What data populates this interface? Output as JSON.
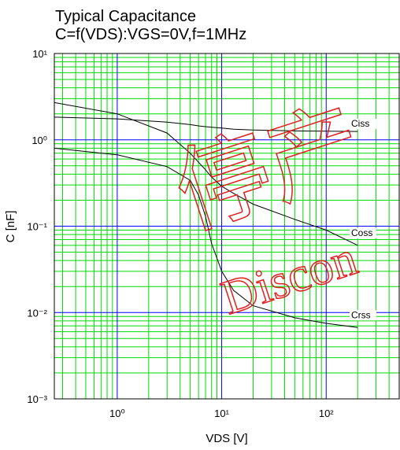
{
  "chart_data": {
    "type": "line",
    "title": [
      "Typical Capacitance",
      "C=f(VDS):VGS=0V,f=1MHz"
    ],
    "xlabel": "VDS [V]",
    "ylabel": "C [nF]",
    "xscale": "log",
    "yscale": "log",
    "x": [
      0.25,
      1,
      3,
      5,
      6,
      7,
      8,
      10,
      13,
      20,
      50,
      100,
      200
    ],
    "series": [
      {
        "name": "Ciss",
        "color": "#000000",
        "values": [
          1.83,
          1.75,
          1.6,
          1.5,
          1.45,
          1.42,
          1.4,
          1.37,
          1.33,
          1.3,
          1.27,
          1.26,
          1.25
        ]
      },
      {
        "name": "Coss",
        "color": "#000000",
        "values": [
          2.7,
          2.0,
          1.2,
          0.7,
          0.55,
          0.45,
          0.37,
          0.29,
          0.24,
          0.18,
          0.12,
          0.09,
          0.06
        ]
      },
      {
        "name": "Crss",
        "color": "#000000",
        "values": [
          0.8,
          0.67,
          0.49,
          0.34,
          0.23,
          0.13,
          0.063,
          0.03,
          0.018,
          0.012,
          0.0087,
          0.0075,
          0.0067
        ]
      }
    ],
    "xlim": [
      0.25,
      500
    ],
    "ylim": [
      0.001,
      10
    ],
    "xticks": [
      {
        "value": 1,
        "label": "10⁰"
      },
      {
        "value": 10,
        "label": "10¹"
      },
      {
        "value": 100,
        "label": "10²"
      }
    ],
    "yticks": [
      {
        "value": 0.001,
        "label": "10⁻³"
      },
      {
        "value": 0.01,
        "label": "10⁻²"
      },
      {
        "value": 0.1,
        "label": "10⁻¹"
      },
      {
        "value": 1,
        "label": "10⁰"
      },
      {
        "value": 10,
        "label": "10¹"
      }
    ],
    "xminorticks": [
      0.3,
      0.4,
      0.5,
      0.6,
      0.7,
      0.8,
      0.9,
      2,
      3,
      4,
      5,
      6,
      7,
      8,
      9,
      20,
      30,
      40,
      50,
      60,
      70,
      80,
      90,
      200,
      300,
      400
    ],
    "yminorticks": [
      0.002,
      0.003,
      0.004,
      0.005,
      0.006,
      0.007,
      0.008,
      0.009,
      0.02,
      0.03,
      0.04,
      0.05,
      0.06,
      0.07,
      0.08,
      0.09,
      0.2,
      0.3,
      0.4,
      0.5,
      0.6,
      0.7,
      0.8,
      0.9,
      2,
      3,
      4,
      5,
      6,
      7,
      8,
      9
    ],
    "grid": true,
    "major_grid_color": "#0000ff",
    "minor_grid_color": "#00dd00",
    "annotations": [
      "停产",
      "Discon"
    ],
    "annotation_color": "#e02020"
  }
}
